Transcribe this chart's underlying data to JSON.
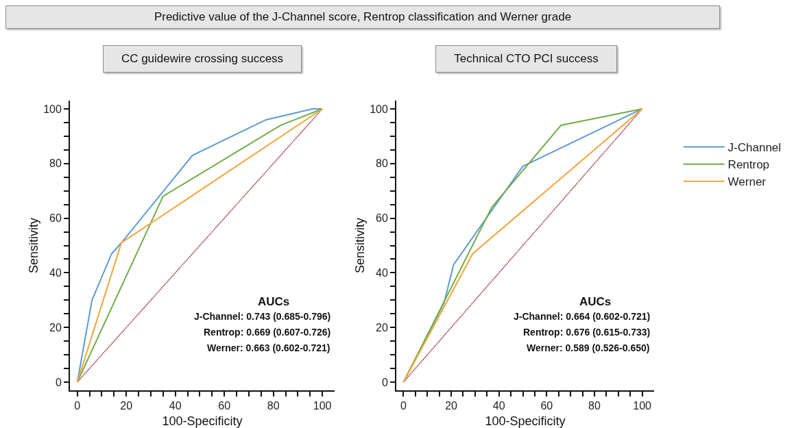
{
  "chart_data": [
    {
      "type": "other",
      "title": "Predictive value of the J-Channel score, Rentrop classification and Werner grade"
    },
    {
      "type": "line",
      "title": "CC guidewire crossing success",
      "xlabel": "100-Specificity",
      "ylabel": "Sensitivity",
      "xlim": [
        -3,
        105
      ],
      "ylim": [
        -3,
        103
      ],
      "xticks": [
        0,
        {
          "value": 5,
          "label": null
        },
        {
          "value": 10,
          "label": null
        },
        {
          "value": 15,
          "label": null
        },
        20,
        {
          "value": 25,
          "label": null
        },
        {
          "value": 30,
          "label": null
        },
        {
          "value": 35,
          "label": null
        },
        40,
        {
          "value": 45,
          "label": null
        },
        {
          "value": 50,
          "label": null
        },
        {
          "value": 55,
          "label": null
        },
        60,
        {
          "value": 65,
          "label": null
        },
        {
          "value": 70,
          "label": null
        },
        {
          "value": 75,
          "label": null
        },
        80,
        {
          "value": 85,
          "label": null
        },
        {
          "value": 90,
          "label": null
        },
        {
          "value": 95,
          "label": null
        },
        100
      ],
      "yticks": [
        0,
        {
          "value": 5,
          "label": null
        },
        {
          "value": 10,
          "label": null
        },
        {
          "value": 15,
          "label": null
        },
        20,
        {
          "value": 25,
          "label": null
        },
        {
          "value": 30,
          "label": null
        },
        {
          "value": 35,
          "label": null
        },
        40,
        {
          "value": 45,
          "label": null
        },
        {
          "value": 50,
          "label": null
        },
        {
          "value": 55,
          "label": null
        },
        60,
        {
          "value": 65,
          "label": null
        },
        {
          "value": 70,
          "label": null
        },
        {
          "value": 75,
          "label": null
        },
        80,
        {
          "value": 85,
          "label": null
        },
        {
          "value": 90,
          "label": null
        },
        {
          "value": 95,
          "label": null
        },
        100
      ],
      "grid": false,
      "marker": "none",
      "series": [
        {
          "type": "line",
          "color": "#8b1a2b",
          "line_style": "dotted",
          "x": [
            0,
            100
          ],
          "values": [
            0,
            100
          ]
        },
        {
          "color": "#5b9bd5",
          "x": [
            0,
            6,
            14,
            18,
            47,
            77,
            96,
            100
          ],
          "values": [
            0,
            30,
            47,
            51,
            83,
            96,
            100,
            100
          ]
        },
        {
          "color": "#70ad47",
          "x": [
            0,
            35,
            83,
            100
          ],
          "values": [
            0,
            68,
            94,
            100
          ]
        },
        {
          "color": "#f4a43c",
          "x": [
            0,
            18,
            100
          ],
          "values": [
            0,
            51,
            100
          ]
        }
      ],
      "annotations": [
        "AUCs",
        "J-Channel: 0.743 (0.685-0.796)",
        "Rentrop: 0.669 (0.607-0.726)",
        "Werner: 0.663 (0.602-0.721)"
      ]
    },
    {
      "type": "line",
      "title": "Technical CTO PCI success",
      "xlabel": "100-Specificity",
      "ylabel": "Sensitivity",
      "xlim": [
        -3,
        105
      ],
      "ylim": [
        -3,
        103
      ],
      "xticks": [
        0,
        {
          "value": 5,
          "label": null
        },
        {
          "value": 10,
          "label": null
        },
        {
          "value": 15,
          "label": null
        },
        20,
        {
          "value": 25,
          "label": null
        },
        {
          "value": 30,
          "label": null
        },
        {
          "value": 35,
          "label": null
        },
        40,
        {
          "value": 45,
          "label": null
        },
        {
          "value": 50,
          "label": null
        },
        {
          "value": 55,
          "label": null
        },
        60,
        {
          "value": 65,
          "label": null
        },
        {
          "value": 70,
          "label": null
        },
        {
          "value": 75,
          "label": null
        },
        80,
        {
          "value": 85,
          "label": null
        },
        {
          "value": 90,
          "label": null
        },
        {
          "value": 95,
          "label": null
        },
        100
      ],
      "yticks": [
        0,
        {
          "value": 5,
          "label": null
        },
        {
          "value": 10,
          "label": null
        },
        {
          "value": 15,
          "label": null
        },
        20,
        {
          "value": 25,
          "label": null
        },
        {
          "value": 30,
          "label": null
        },
        {
          "value": 35,
          "label": null
        },
        40,
        {
          "value": 45,
          "label": null
        },
        {
          "value": 50,
          "label": null
        },
        {
          "value": 55,
          "label": null
        },
        60,
        {
          "value": 65,
          "label": null
        },
        {
          "value": 70,
          "label": null
        },
        {
          "value": 75,
          "label": null
        },
        80,
        {
          "value": 85,
          "label": null
        },
        {
          "value": 90,
          "label": null
        },
        {
          "value": 95,
          "label": null
        },
        100
      ],
      "grid": false,
      "marker": "none",
      "legend": "right",
      "series": [
        {
          "type": "line",
          "color": "#8b1a2b",
          "line_style": "dotted",
          "x": [
            0,
            100
          ],
          "values": [
            0,
            100
          ]
        },
        {
          "name": "J-Channel",
          "color": "#5b9bd5",
          "x": [
            0,
            17,
            21,
            50,
            100
          ],
          "values": [
            0,
            29,
            43,
            79,
            100
          ]
        },
        {
          "name": "Rentrop",
          "color": "#70ad47",
          "x": [
            0,
            37,
            66,
            100
          ],
          "values": [
            0,
            64,
            94,
            100
          ]
        },
        {
          "name": "Werner",
          "color": "#f4a43c",
          "x": [
            0,
            29,
            100
          ],
          "values": [
            0,
            47,
            100
          ]
        }
      ],
      "annotations": [
        "AUCs",
        "J-Channel: 0.664 (0.602-0.721)",
        "Rentrop: 0.676 (0.615-0.733)",
        "Werner: 0.589 (0.526-0.650)"
      ]
    }
  ]
}
